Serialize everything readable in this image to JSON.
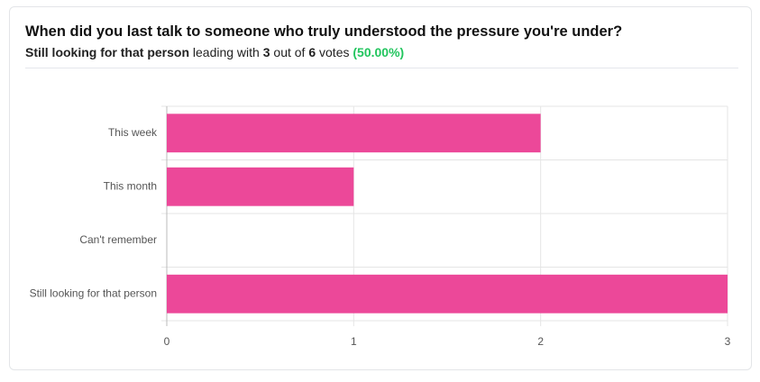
{
  "poll": {
    "question": "When did you last talk to someone who truly understood the pressure you're under?",
    "summary": {
      "leader": "Still looking for that person",
      "leading_text": "leading with",
      "leader_votes": 3,
      "out_of_text": "out of",
      "total_votes": 6,
      "votes_text": "votes",
      "percent": "(50.00%)"
    }
  },
  "chart_data": {
    "type": "bar",
    "orientation": "horizontal",
    "categories": [
      "This week",
      "This month",
      "Can't remember",
      "Still looking for that person"
    ],
    "values": [
      2,
      1,
      0,
      3
    ],
    "color": "#ec4899",
    "xlim": [
      0,
      3
    ],
    "xticks": [
      0,
      1,
      2,
      3
    ],
    "grid": true
  }
}
